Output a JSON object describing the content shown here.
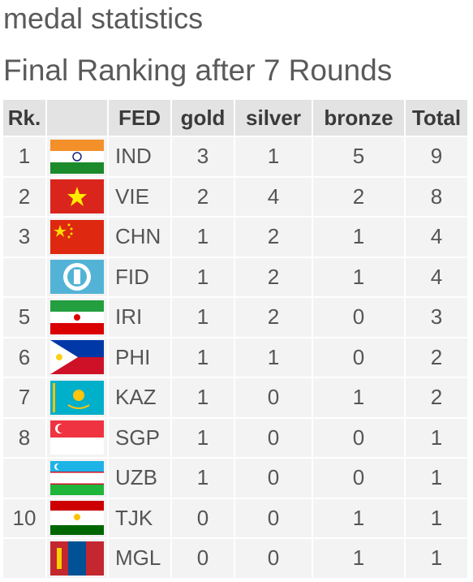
{
  "header": {
    "title": "medal statistics",
    "subtitle": "Final Ranking after 7 Rounds"
  },
  "table": {
    "columns": {
      "rank": "Rk.",
      "fed": "FED",
      "gold": "gold",
      "silver": "silver",
      "bronze": "bronze",
      "total": "Total"
    },
    "rows": [
      {
        "rank": "1",
        "fed": "IND",
        "gold": "3",
        "silver": "1",
        "bronze": "5",
        "total": "9"
      },
      {
        "rank": "2",
        "fed": "VIE",
        "gold": "2",
        "silver": "4",
        "bronze": "2",
        "total": "8"
      },
      {
        "rank": "3",
        "fed": "CHN",
        "gold": "1",
        "silver": "2",
        "bronze": "1",
        "total": "4"
      },
      {
        "fed": "FID",
        "gold": "1",
        "silver": "2",
        "bronze": "1",
        "total": "4"
      },
      {
        "rank": "5",
        "fed": "IRI",
        "gold": "1",
        "silver": "2",
        "bronze": "0",
        "total": "3"
      },
      {
        "rank": "6",
        "fed": "PHI",
        "gold": "1",
        "silver": "1",
        "bronze": "0",
        "total": "2"
      },
      {
        "rank": "7",
        "fed": "KAZ",
        "gold": "1",
        "silver": "0",
        "bronze": "1",
        "total": "2"
      },
      {
        "rank": "8",
        "fed": "SGP",
        "gold": "1",
        "silver": "0",
        "bronze": "0",
        "total": "1"
      },
      {
        "fed": "UZB",
        "gold": "1",
        "silver": "0",
        "bronze": "0",
        "total": "1"
      },
      {
        "rank": "10",
        "fed": "TJK",
        "gold": "0",
        "silver": "0",
        "bronze": "1",
        "total": "1"
      },
      {
        "fed": "MGL",
        "gold": "0",
        "silver": "0",
        "bronze": "1",
        "total": "1"
      }
    ]
  }
}
